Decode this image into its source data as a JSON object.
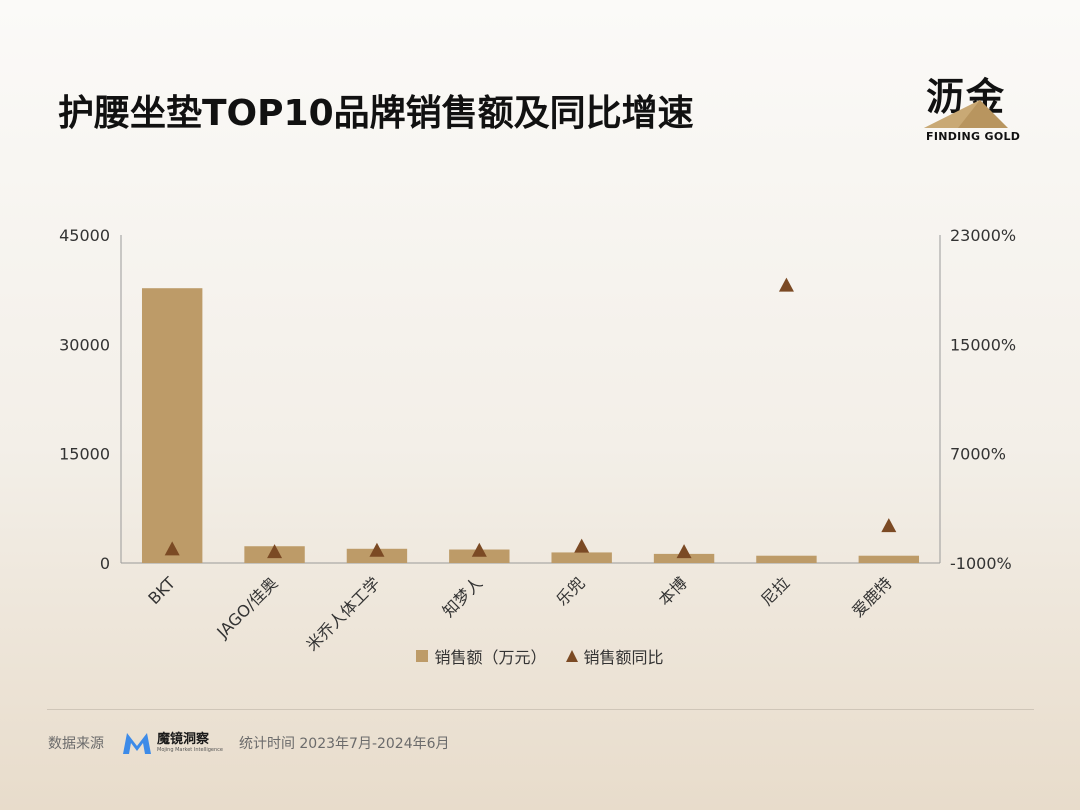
{
  "title": "护腰坐垫TOP10品牌销售额及同比增速",
  "brand_logo": {
    "cn": "沥金",
    "en": "FINDING GOLD"
  },
  "colors": {
    "bar": "#bd9b68",
    "marker": "#7b4a24",
    "axis": "#9a9a9a"
  },
  "chart_data": {
    "type": "bar",
    "categories": [
      "BKT",
      "JAGO/佳奥",
      "米乔人体工学",
      "知梦人",
      "乐兜",
      "本博",
      "尼拉",
      "爱鹿特"
    ],
    "series": [
      {
        "name": "销售额（万元）",
        "type": "bar",
        "axis": "left",
        "values": [
          37700,
          2300,
          1950,
          1850,
          1450,
          1250,
          1000,
          1000
        ]
      },
      {
        "name": "销售额同比",
        "type": "scatter",
        "marker": "triangle",
        "axis": "right",
        "values": [
          0,
          -200,
          -100,
          -100,
          200,
          -200,
          19300,
          1700
        ]
      }
    ],
    "y_left": {
      "ylim": [
        0,
        45000
      ],
      "ticks": [
        "45000",
        "30000",
        "15000",
        "0"
      ]
    },
    "y_right": {
      "ylim": [
        -1000,
        23000
      ],
      "ticks": [
        "23000%",
        "15000%",
        "7000%",
        "-1000%"
      ]
    },
    "legend_position": "bottom-center",
    "grid": false
  },
  "legend": {
    "bar_label": "销售额（万元）",
    "marker_label": "销售额同比"
  },
  "footer": {
    "source_label": "数据来源",
    "source_logo_cn": "魔镜洞察",
    "source_logo_en": "Mojing Market Intelligence",
    "period": "统计时间 2023年7月-2024年6月"
  }
}
